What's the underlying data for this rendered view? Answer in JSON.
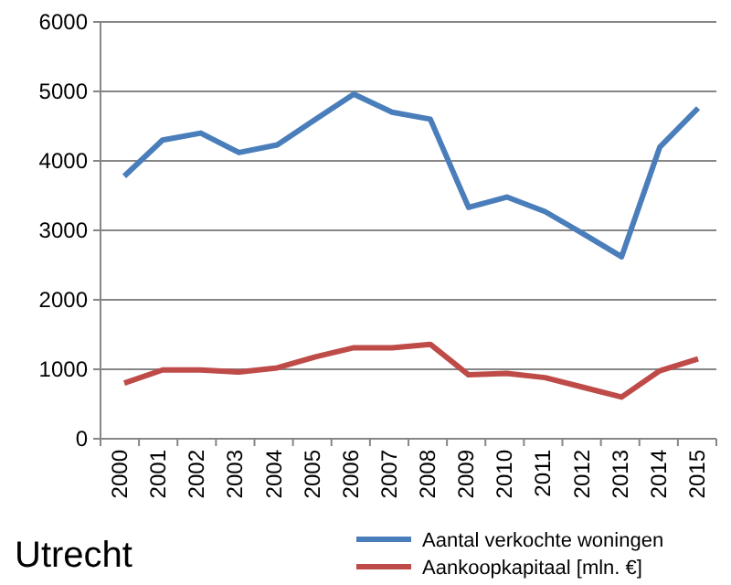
{
  "chart_data": {
    "type": "line",
    "title": "Utrecht",
    "categories": [
      "2000",
      "2001",
      "2002",
      "2003",
      "2004",
      "2005",
      "2006",
      "2007",
      "2008",
      "2009",
      "2010",
      "2011",
      "2012",
      "2013",
      "2014",
      "2015"
    ],
    "series": [
      {
        "name": "Aantal verkochte woningen",
        "color": "#4a7ebb",
        "values": [
          3780,
          4300,
          4400,
          4120,
          4230,
          4600,
          4960,
          4700,
          4600,
          3330,
          3480,
          3270,
          2950,
          2620,
          4200,
          4760
        ]
      },
      {
        "name": "Aankoopkapitaal  [mln. €]",
        "color": "#be4b48",
        "values": [
          800,
          990,
          990,
          960,
          1020,
          1180,
          1310,
          1310,
          1360,
          920,
          940,
          880,
          740,
          600,
          980,
          1150
        ]
      }
    ],
    "ylim": [
      0,
      6000
    ],
    "yticks": [
      0,
      1000,
      2000,
      3000,
      4000,
      5000,
      6000
    ],
    "grid": "y",
    "legend": "bottom right",
    "marker": "none",
    "line_style": "solid"
  }
}
